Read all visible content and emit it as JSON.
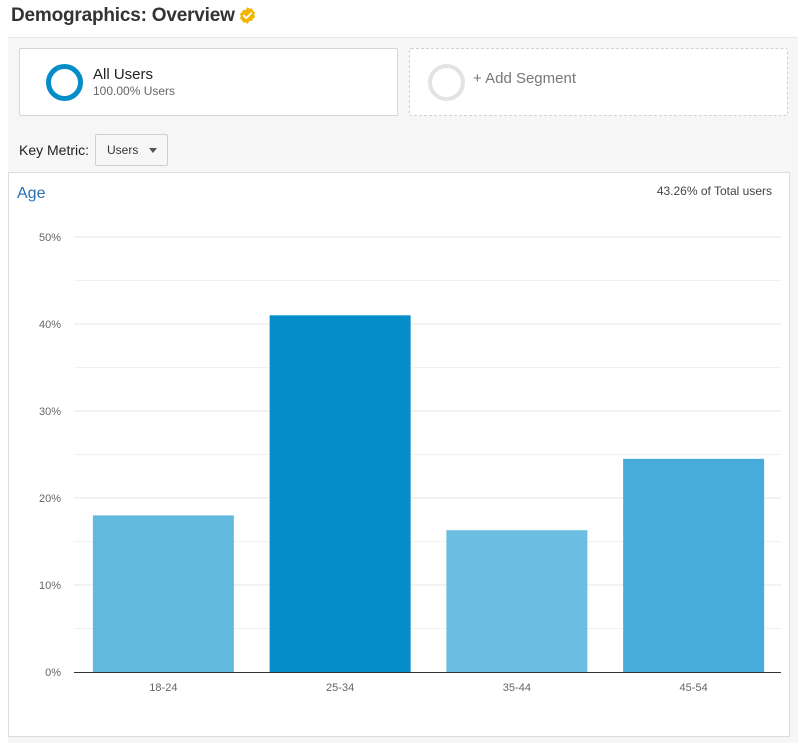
{
  "header": {
    "title": "Demographics: Overview",
    "verified_icon": "verified-badge-icon",
    "verified_color": "#f4b400"
  },
  "segments": {
    "all_users": {
      "name": "All Users",
      "sub": "100.00% Users",
      "color": "#058dc7"
    },
    "add_segment": {
      "label": "+ Add Segment"
    }
  },
  "key_metric": {
    "label": "Key Metric:",
    "value": "Users"
  },
  "chart": {
    "title": "Age",
    "total_note": "43.26% of Total users"
  },
  "chart_data": {
    "type": "bar",
    "title": "Age",
    "categories": [
      "18-24",
      "25-34",
      "35-44",
      "45-54"
    ],
    "values": [
      18.0,
      41.0,
      16.3,
      24.5
    ],
    "colors": [
      "#62b9e0",
      "#058dc7",
      "#6cbde2",
      "#47acdb"
    ],
    "ylim": [
      0,
      50
    ],
    "yticks": [
      0,
      10,
      20,
      30,
      40,
      50
    ],
    "ytick_labels": [
      "0%",
      "10%",
      "20%",
      "30%",
      "40%",
      "50%"
    ],
    "grid": true,
    "xlabel": "",
    "ylabel": ""
  }
}
